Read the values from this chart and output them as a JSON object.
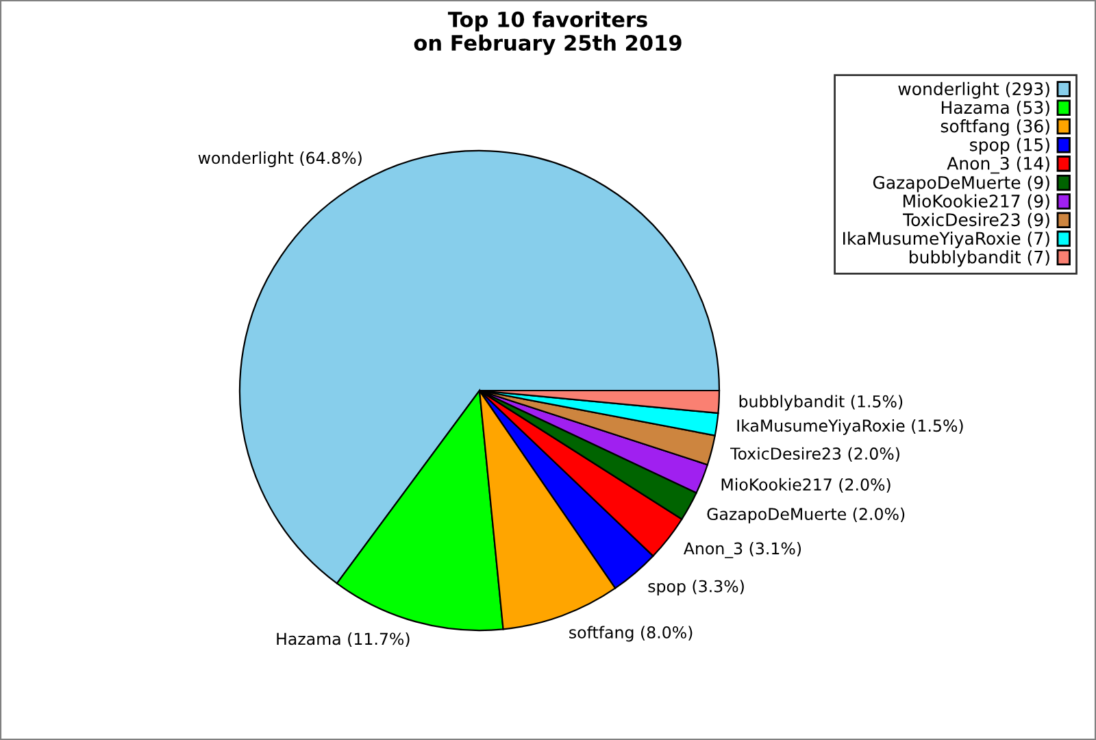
{
  "chart_data": {
    "type": "pie",
    "title": "Top 10 favoriters\non February 25th 2019",
    "categories": [
      "wonderlight (293)",
      "Hazama (53)",
      "softfang (36)",
      "spop (15)",
      "Anon_3 (14)",
      "GazapoDeMuerte (9)",
      "MioKookie217 (9)",
      "ToxicDesire23 (9)",
      "IkaMusumeYiyaRoxie (7)",
      "bubblybandit (7)"
    ],
    "values": [
      64.8,
      11.7,
      8.0,
      3.3,
      3.1,
      2.0,
      2.0,
      2.0,
      1.5,
      1.5
    ],
    "value_labels": [
      "wonderlight (64.8%)",
      "Hazama (11.7%)",
      "softfang (8.0%)",
      "spop (3.3%)",
      "Anon_3 (3.1%)",
      "GazapoDeMuerte (2.0%)",
      "MioKookie217 (2.0%)",
      "ToxicDesire23 (2.0%)",
      "IkaMusumeYiyaRoxie (1.5%)",
      "bubblybandit (1.5%)"
    ],
    "colors": [
      "#87ceeb",
      "#00ff00",
      "#ffa500",
      "#0000ff",
      "#ff0000",
      "#006400",
      "#a020f0",
      "#cd853f",
      "#00ffff",
      "#fa8072"
    ],
    "legend": "top right"
  }
}
